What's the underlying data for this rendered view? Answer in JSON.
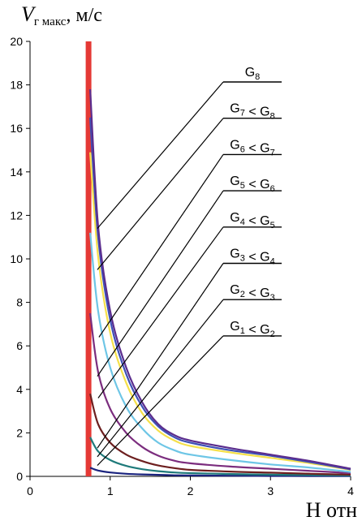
{
  "chart_data": {
    "type": "line",
    "ylabel": {
      "main": "V",
      "sub": "г макс",
      "unit": ", м/с"
    },
    "xlabel": "H отн",
    "xlim": [
      0,
      4
    ],
    "ylim": [
      0,
      20
    ],
    "x_ticks": [
      0,
      1,
      2,
      3,
      4
    ],
    "y_ticks": [
      0,
      2,
      4,
      6,
      8,
      10,
      12,
      14,
      16,
      18,
      20
    ],
    "grid": false,
    "vline": {
      "x": 0.73,
      "color": "#e53935"
    },
    "series": [
      {
        "name": "G8",
        "label": "G₈",
        "label_parts": [
          [
            "G",
            ""
          ],
          [
            "8",
            "sub"
          ]
        ],
        "color": "#5b2d8e",
        "x": [
          0.75,
          0.85,
          1.0,
          1.2,
          1.4,
          1.6,
          1.8,
          2.0,
          2.5,
          3.0,
          3.5,
          4.0
        ],
        "y": [
          17.8,
          11.5,
          7.6,
          5.0,
          3.4,
          2.4,
          1.9,
          1.65,
          1.3,
          1.0,
          0.7,
          0.35
        ],
        "leader_end": [
          0.84,
          11.4
        ]
      },
      {
        "name": "G7 < G8",
        "label_parts": [
          [
            "G",
            ""
          ],
          [
            "7",
            "sub"
          ],
          [
            " < G",
            ""
          ],
          [
            "8",
            "sub"
          ]
        ],
        "color": "#3f51b5",
        "x": [
          0.75,
          0.85,
          1.0,
          1.2,
          1.4,
          1.6,
          1.8,
          2.0,
          2.5,
          3.0,
          3.5,
          4.0
        ],
        "y": [
          16.5,
          11.0,
          7.2,
          4.7,
          3.2,
          2.3,
          1.8,
          1.55,
          1.2,
          0.95,
          0.65,
          0.32
        ],
        "leader_end": [
          0.84,
          9.5
        ]
      },
      {
        "name": "G6 < G7",
        "label_parts": [
          [
            "G",
            ""
          ],
          [
            "6",
            "sub"
          ],
          [
            " < G",
            ""
          ],
          [
            "7",
            "sub"
          ]
        ],
        "color": "#f5e04a",
        "x": [
          0.75,
          0.85,
          1.0,
          1.2,
          1.4,
          1.6,
          1.8,
          2.0,
          2.5,
          3.0,
          3.5,
          4.0
        ],
        "y": [
          14.9,
          10.1,
          6.6,
          4.3,
          2.9,
          2.1,
          1.65,
          1.4,
          1.1,
          0.85,
          0.6,
          0.3
        ],
        "leader_end": [
          0.86,
          6.4
        ]
      },
      {
        "name": "G5 < G6",
        "label_parts": [
          [
            "G",
            ""
          ],
          [
            "5",
            "sub"
          ],
          [
            " < G",
            ""
          ],
          [
            "6",
            "sub"
          ]
        ],
        "color": "#6ec6e6",
        "x": [
          0.75,
          0.85,
          1.0,
          1.2,
          1.4,
          1.6,
          1.8,
          2.0,
          2.5,
          3.0,
          3.5,
          4.0
        ],
        "y": [
          11.2,
          7.6,
          5.0,
          3.2,
          2.2,
          1.55,
          1.2,
          1.0,
          0.75,
          0.55,
          0.4,
          0.2
        ],
        "leader_end": [
          0.84,
          4.6
        ]
      },
      {
        "name": "G4 < G5",
        "label_parts": [
          [
            "G",
            ""
          ],
          [
            "4",
            "sub"
          ],
          [
            " < G",
            ""
          ],
          [
            "5",
            "sub"
          ]
        ],
        "color": "#7b2d7e",
        "x": [
          0.75,
          0.85,
          1.0,
          1.2,
          1.4,
          1.6,
          1.8,
          2.0,
          2.5,
          3.0,
          3.5,
          4.0
        ],
        "y": [
          7.5,
          4.8,
          3.1,
          2.0,
          1.35,
          0.95,
          0.72,
          0.6,
          0.45,
          0.35,
          0.25,
          0.15
        ],
        "leader_end": [
          0.85,
          3.6
        ]
      },
      {
        "name": "G3 < G4",
        "label_parts": [
          [
            "G",
            ""
          ],
          [
            "3",
            "sub"
          ],
          [
            " < G",
            ""
          ],
          [
            "4",
            "sub"
          ]
        ],
        "color": "#6d1f1f",
        "x": [
          0.75,
          0.85,
          1.0,
          1.2,
          1.4,
          1.6,
          1.8,
          2.0,
          2.5,
          3.0,
          3.5,
          4.0
        ],
        "y": [
          3.8,
          2.4,
          1.55,
          1.0,
          0.7,
          0.5,
          0.38,
          0.3,
          0.22,
          0.17,
          0.12,
          0.08
        ],
        "leader_end": [
          0.84,
          1.3
        ]
      },
      {
        "name": "G2 < G3",
        "label_parts": [
          [
            "G",
            ""
          ],
          [
            "2",
            "sub"
          ],
          [
            " < G",
            ""
          ],
          [
            "3",
            "sub"
          ]
        ],
        "color": "#1f7a7a",
        "x": [
          0.75,
          0.85,
          1.0,
          1.2,
          1.4,
          1.6,
          1.8,
          2.0,
          2.5,
          3.0,
          3.5,
          4.0
        ],
        "y": [
          1.8,
          1.15,
          0.75,
          0.48,
          0.33,
          0.24,
          0.18,
          0.15,
          0.11,
          0.08,
          0.06,
          0.04
        ],
        "leader_end": [
          0.84,
          0.9
        ]
      },
      {
        "name": "G1 < G2",
        "label_parts": [
          [
            "G",
            ""
          ],
          [
            "1",
            "sub"
          ],
          [
            " < G",
            ""
          ],
          [
            "2",
            "sub"
          ]
        ],
        "color": "#1a237e",
        "x": [
          0.75,
          0.85,
          1.0,
          1.2,
          1.4,
          1.6,
          1.8,
          2.0,
          2.5,
          3.0,
          3.5,
          4.0
        ],
        "y": [
          0.4,
          0.27,
          0.18,
          0.12,
          0.09,
          0.07,
          0.05,
          0.04,
          0.03,
          0.02,
          0.015,
          0.01
        ],
        "leader_end": [
          0.84,
          0.5
        ]
      }
    ]
  }
}
